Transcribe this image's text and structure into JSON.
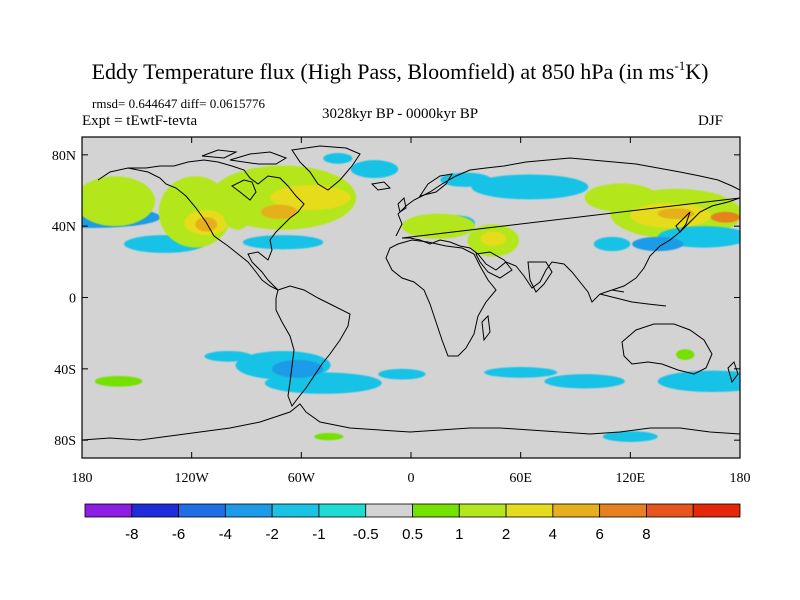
{
  "title": {
    "main": "Eddy Temperature flux (High Pass, Bloomfield) at 850 hPa (in ms",
    "sup": "-1",
    "tail": "K)"
  },
  "stats": {
    "rmsd_diff": "rmsd= 0.644647 diff= 0.0615776"
  },
  "header": {
    "expt": "Expt = tEwtF-tevta",
    "period": "3028kyr BP - 0000kyr BP",
    "season": "DJF"
  },
  "lat_ticks": [
    {
      "label": "80N",
      "lat": 80
    },
    {
      "label": "40N",
      "lat": 40
    },
    {
      "label": "0",
      "lat": 0
    },
    {
      "label": "40S",
      "lat": -40
    },
    {
      "label": "80S",
      "lat": -80
    }
  ],
  "lon_ticks": [
    {
      "label": "180",
      "lon": -180
    },
    {
      "label": "120W",
      "lon": -120
    },
    {
      "label": "60W",
      "lon": -60
    },
    {
      "label": "0",
      "lon": 0
    },
    {
      "label": "60E",
      "lon": 60
    },
    {
      "label": "120E",
      "lon": 120
    },
    {
      "label": "180",
      "lon": 180
    }
  ],
  "colorbar": {
    "colors": [
      "#8c1ee6",
      "#1e2ddc",
      "#1e6ee6",
      "#1e9be6",
      "#19c3e6",
      "#1edcd2",
      "#d3d3d3",
      "#74e100",
      "#b4e61e",
      "#e6dc1e",
      "#e6af1e",
      "#e6821e",
      "#e6551e",
      "#e6280a"
    ],
    "labels": [
      "-8",
      "-6",
      "-4",
      "-2",
      "-1",
      "-0.5",
      "0.5",
      "1",
      "2",
      "4",
      "6",
      "8"
    ]
  },
  "map": {
    "background_color": "#d3d3d3",
    "lon_range": [
      -180,
      180
    ],
    "lat_range": [
      -90,
      90
    ],
    "anomalies": [
      {
        "level": 3,
        "lon": -175,
        "lat": 45,
        "rlon": 38,
        "rlat": 6
      },
      {
        "level": 4,
        "lon": -135,
        "lat": 30,
        "rlon": 22,
        "rlat": 5
      },
      {
        "level": 4,
        "lon": -70,
        "lat": 31,
        "rlon": 22,
        "rlat": 4
      },
      {
        "level": 8,
        "lon": -162,
        "lat": 54,
        "rlon": 22,
        "rlat": 14
      },
      {
        "level": 8,
        "lon": -118,
        "lat": 48,
        "rlon": 20,
        "rlat": 20
      },
      {
        "level": 9,
        "lon": -112,
        "lat": 42,
        "rlon": 12,
        "rlat": 7
      },
      {
        "level": 10,
        "lon": -112,
        "lat": 41,
        "rlon": 6,
        "rlat": 4
      },
      {
        "level": 8,
        "lon": -70,
        "lat": 56,
        "rlon": 40,
        "rlat": 18
      },
      {
        "level": 9,
        "lon": -55,
        "lat": 56,
        "rlon": 22,
        "rlat": 7
      },
      {
        "level": 10,
        "lon": -72,
        "lat": 48,
        "rlon": 10,
        "rlat": 4
      },
      {
        "level": 8,
        "lon": -95,
        "lat": 48,
        "rlon": 8,
        "rlat": 10
      },
      {
        "level": 4,
        "lon": -40,
        "lat": 78,
        "rlon": 8,
        "rlat": 3
      },
      {
        "level": 4,
        "lon": -20,
        "lat": 72,
        "rlon": 13,
        "rlat": 5
      },
      {
        "level": 4,
        "lon": 30,
        "lat": 66,
        "rlon": 14,
        "rlat": 4
      },
      {
        "level": 4,
        "lon": 65,
        "lat": 62,
        "rlon": 32,
        "rlat": 7
      },
      {
        "level": 4,
        "lon": 25,
        "lat": 42,
        "rlon": 10,
        "rlat": 4
      },
      {
        "level": 8,
        "lon": 15,
        "lat": 40,
        "rlon": 20,
        "rlat": 7
      },
      {
        "level": 8,
        "lon": 45,
        "lat": 32,
        "rlon": 14,
        "rlat": 9
      },
      {
        "level": 9,
        "lon": 45,
        "lat": 33,
        "rlon": 7,
        "rlat": 4
      },
      {
        "level": 8,
        "lon": 115,
        "lat": 56,
        "rlon": 20,
        "rlat": 8
      },
      {
        "level": 8,
        "lon": 145,
        "lat": 47,
        "rlon": 36,
        "rlat": 14
      },
      {
        "level": 9,
        "lon": 142,
        "lat": 46,
        "rlon": 22,
        "rlat": 7
      },
      {
        "level": 10,
        "lon": 145,
        "lat": 47,
        "rlon": 10,
        "rlat": 3
      },
      {
        "level": 11,
        "lon": 172,
        "lat": 45,
        "rlon": 8,
        "rlat": 3
      },
      {
        "level": 4,
        "lon": 160,
        "lat": 34,
        "rlon": 25,
        "rlat": 6
      },
      {
        "level": 3,
        "lon": 135,
        "lat": 30,
        "rlon": 14,
        "rlat": 4
      },
      {
        "level": 4,
        "lon": 110,
        "lat": 30,
        "rlon": 10,
        "rlat": 4
      },
      {
        "level": 4,
        "lon": -70,
        "lat": -38,
        "rlon": 26,
        "rlat": 8
      },
      {
        "level": 4,
        "lon": -48,
        "lat": -48,
        "rlon": 32,
        "rlat": 6
      },
      {
        "level": 3,
        "lon": -62,
        "lat": -40,
        "rlon": 14,
        "rlat": 5
      },
      {
        "level": 4,
        "lon": -5,
        "lat": -43,
        "rlon": 13,
        "rlat": 3
      },
      {
        "level": 4,
        "lon": 60,
        "lat": -42,
        "rlon": 20,
        "rlat": 3
      },
      {
        "level": 4,
        "lon": 95,
        "lat": -47,
        "rlon": 22,
        "rlat": 4
      },
      {
        "level": 4,
        "lon": 165,
        "lat": -47,
        "rlon": 30,
        "rlat": 6
      },
      {
        "level": 4,
        "lon": -100,
        "lat": -33,
        "rlon": 13,
        "rlat": 3
      },
      {
        "level": 4,
        "lon": 120,
        "lat": -78,
        "rlon": 15,
        "rlat": 3
      },
      {
        "level": 7,
        "lon": -160,
        "lat": -47,
        "rlon": 13,
        "rlat": 3
      },
      {
        "level": 7,
        "lon": 150,
        "lat": -32,
        "rlon": 5,
        "rlat": 3
      },
      {
        "level": 7,
        "lon": -45,
        "lat": -78,
        "rlon": 8,
        "rlat": 2
      }
    ]
  }
}
